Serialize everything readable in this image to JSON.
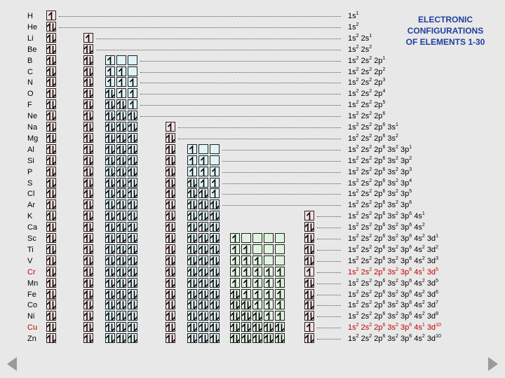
{
  "title": {
    "line1": "ELECTRONIC",
    "line2": "CONFIGURATIONS",
    "line3": "OF ELEMENTS 1-30"
  },
  "colors": {
    "s_box": "#fce1e1",
    "p_box": "#dff4f6",
    "d_box": "#e0f3df",
    "highlight": "#c00000",
    "title": "#1f3f9f",
    "background": "#e8e8e8"
  },
  "icons": {
    "electron_up": "arrow-up-icon",
    "electron_pair": "arrow-pair-icon",
    "prev": "triangle-left-icon",
    "next": "triangle-right-icon"
  },
  "elements": [
    {
      "symbol": "H",
      "highlight": false,
      "cfg": [
        [
          "1s",
          "1"
        ]
      ],
      "boxes": {
        "1s": 1
      }
    },
    {
      "symbol": "He",
      "highlight": false,
      "cfg": [
        [
          "1s",
          "2"
        ]
      ],
      "boxes": {
        "1s": 2
      }
    },
    {
      "symbol": "Li",
      "highlight": false,
      "cfg": [
        [
          "1s",
          "2"
        ],
        [
          "2s",
          "1"
        ]
      ],
      "boxes": {
        "1s": 2,
        "2s": 1
      }
    },
    {
      "symbol": "Be",
      "highlight": false,
      "cfg": [
        [
          "1s",
          "2"
        ],
        [
          "2s",
          "2"
        ]
      ],
      "boxes": {
        "1s": 2,
        "2s": 2
      }
    },
    {
      "symbol": "B",
      "highlight": false,
      "cfg": [
        [
          "1s",
          "2"
        ],
        [
          "2s",
          "2"
        ],
        [
          "2p",
          "1"
        ]
      ],
      "boxes": {
        "1s": 2,
        "2s": 2,
        "2p": [
          1,
          0,
          0
        ]
      }
    },
    {
      "symbol": "C",
      "highlight": false,
      "cfg": [
        [
          "1s",
          "2"
        ],
        [
          "2s",
          "2"
        ],
        [
          "2p",
          "2"
        ]
      ],
      "boxes": {
        "1s": 2,
        "2s": 2,
        "2p": [
          1,
          1,
          0
        ]
      }
    },
    {
      "symbol": "N",
      "highlight": false,
      "cfg": [
        [
          "1s",
          "2"
        ],
        [
          "2s",
          "2"
        ],
        [
          "2p",
          "3"
        ]
      ],
      "boxes": {
        "1s": 2,
        "2s": 2,
        "2p": [
          1,
          1,
          1
        ]
      }
    },
    {
      "symbol": "O",
      "highlight": false,
      "cfg": [
        [
          "1s",
          "2"
        ],
        [
          "2s",
          "2"
        ],
        [
          "2p",
          "4"
        ]
      ],
      "boxes": {
        "1s": 2,
        "2s": 2,
        "2p": [
          2,
          1,
          1
        ]
      }
    },
    {
      "symbol": "F",
      "highlight": false,
      "cfg": [
        [
          "1s",
          "2"
        ],
        [
          "2s",
          "2"
        ],
        [
          "2p",
          "5"
        ]
      ],
      "boxes": {
        "1s": 2,
        "2s": 2,
        "2p": [
          2,
          2,
          1
        ]
      }
    },
    {
      "symbol": "Ne",
      "highlight": false,
      "cfg": [
        [
          "1s",
          "2"
        ],
        [
          "2s",
          "2"
        ],
        [
          "2p",
          "6"
        ]
      ],
      "boxes": {
        "1s": 2,
        "2s": 2,
        "2p": [
          2,
          2,
          2
        ]
      }
    },
    {
      "symbol": "Na",
      "highlight": false,
      "cfg": [
        [
          "1s",
          "2"
        ],
        [
          "2s",
          "2"
        ],
        [
          "2p",
          "6"
        ],
        [
          "3s",
          "1"
        ]
      ],
      "boxes": {
        "1s": 2,
        "2s": 2,
        "2p": [
          2,
          2,
          2
        ],
        "3s": 1
      }
    },
    {
      "symbol": "Mg",
      "highlight": false,
      "cfg": [
        [
          "1s",
          "2"
        ],
        [
          "2s",
          "2"
        ],
        [
          "2p",
          "6"
        ],
        [
          "3s",
          "2"
        ]
      ],
      "boxes": {
        "1s": 2,
        "2s": 2,
        "2p": [
          2,
          2,
          2
        ],
        "3s": 2
      }
    },
    {
      "symbol": "Al",
      "highlight": false,
      "cfg": [
        [
          "1s",
          "2"
        ],
        [
          "2s",
          "2"
        ],
        [
          "2p",
          "6"
        ],
        [
          "3s",
          "2"
        ],
        [
          "3p",
          "1"
        ]
      ],
      "boxes": {
        "1s": 2,
        "2s": 2,
        "2p": [
          2,
          2,
          2
        ],
        "3s": 2,
        "3p": [
          1,
          0,
          0
        ]
      }
    },
    {
      "symbol": "Si",
      "highlight": false,
      "cfg": [
        [
          "1s",
          "2"
        ],
        [
          "2s",
          "2"
        ],
        [
          "2p",
          "6"
        ],
        [
          "3s",
          "2"
        ],
        [
          "3p",
          "2"
        ]
      ],
      "boxes": {
        "1s": 2,
        "2s": 2,
        "2p": [
          2,
          2,
          2
        ],
        "3s": 2,
        "3p": [
          1,
          1,
          0
        ]
      }
    },
    {
      "symbol": "P",
      "highlight": false,
      "cfg": [
        [
          "1s",
          "2"
        ],
        [
          "2s",
          "2"
        ],
        [
          "2p",
          "6"
        ],
        [
          "3s",
          "2"
        ],
        [
          "3p",
          "3"
        ]
      ],
      "boxes": {
        "1s": 2,
        "2s": 2,
        "2p": [
          2,
          2,
          2
        ],
        "3s": 2,
        "3p": [
          1,
          1,
          1
        ]
      }
    },
    {
      "symbol": "S",
      "highlight": false,
      "cfg": [
        [
          "1s",
          "2"
        ],
        [
          "2s",
          "2"
        ],
        [
          "2p",
          "6"
        ],
        [
          "3s",
          "2"
        ],
        [
          "3p",
          "4"
        ]
      ],
      "boxes": {
        "1s": 2,
        "2s": 2,
        "2p": [
          2,
          2,
          2
        ],
        "3s": 2,
        "3p": [
          2,
          1,
          1
        ]
      }
    },
    {
      "symbol": "Cl",
      "highlight": false,
      "cfg": [
        [
          "1s",
          "2"
        ],
        [
          "2s",
          "2"
        ],
        [
          "2p",
          "6"
        ],
        [
          "3s",
          "2"
        ],
        [
          "3p",
          "5"
        ]
      ],
      "boxes": {
        "1s": 2,
        "2s": 2,
        "2p": [
          2,
          2,
          2
        ],
        "3s": 2,
        "3p": [
          2,
          2,
          1
        ]
      }
    },
    {
      "symbol": "Ar",
      "highlight": false,
      "cfg": [
        [
          "1s",
          "2"
        ],
        [
          "2s",
          "2"
        ],
        [
          "2p",
          "6"
        ],
        [
          "3s",
          "2"
        ],
        [
          "3p",
          "6"
        ]
      ],
      "boxes": {
        "1s": 2,
        "2s": 2,
        "2p": [
          2,
          2,
          2
        ],
        "3s": 2,
        "3p": [
          2,
          2,
          2
        ]
      }
    },
    {
      "symbol": "K",
      "highlight": false,
      "cfg": [
        [
          "1s",
          "2"
        ],
        [
          "2s",
          "2"
        ],
        [
          "2p",
          "6"
        ],
        [
          "3s",
          "2"
        ],
        [
          "3p",
          "6"
        ],
        [
          "4s",
          "1"
        ]
      ],
      "boxes": {
        "1s": 2,
        "2s": 2,
        "2p": [
          2,
          2,
          2
        ],
        "3s": 2,
        "3p": [
          2,
          2,
          2
        ],
        "4s": 1
      }
    },
    {
      "symbol": "Ca",
      "highlight": false,
      "cfg": [
        [
          "1s",
          "2"
        ],
        [
          "2s",
          "2"
        ],
        [
          "2p",
          "6"
        ],
        [
          "3s",
          "2"
        ],
        [
          "3p",
          "6"
        ],
        [
          "4s",
          "2"
        ]
      ],
      "boxes": {
        "1s": 2,
        "2s": 2,
        "2p": [
          2,
          2,
          2
        ],
        "3s": 2,
        "3p": [
          2,
          2,
          2
        ],
        "4s": 2
      }
    },
    {
      "symbol": "Sc",
      "highlight": false,
      "cfg": [
        [
          "1s",
          "2"
        ],
        [
          "2s",
          "2"
        ],
        [
          "2p",
          "6"
        ],
        [
          "3s",
          "2"
        ],
        [
          "3p",
          "6"
        ],
        [
          "4s",
          "2"
        ],
        [
          "3d",
          "1"
        ]
      ],
      "boxes": {
        "1s": 2,
        "2s": 2,
        "2p": [
          2,
          2,
          2
        ],
        "3s": 2,
        "3p": [
          2,
          2,
          2
        ],
        "3d": [
          1,
          0,
          0,
          0,
          0
        ],
        "4s": 2
      }
    },
    {
      "symbol": "Ti",
      "highlight": false,
      "cfg": [
        [
          "1s",
          "2"
        ],
        [
          "2s",
          "2"
        ],
        [
          "2p",
          "6"
        ],
        [
          "3s",
          "2"
        ],
        [
          "3p",
          "6"
        ],
        [
          "4s",
          "2"
        ],
        [
          "3d",
          "2"
        ]
      ],
      "boxes": {
        "1s": 2,
        "2s": 2,
        "2p": [
          2,
          2,
          2
        ],
        "3s": 2,
        "3p": [
          2,
          2,
          2
        ],
        "3d": [
          1,
          1,
          0,
          0,
          0
        ],
        "4s": 2
      }
    },
    {
      "symbol": "V",
      "highlight": false,
      "cfg": [
        [
          "1s",
          "2"
        ],
        [
          "2s",
          "2"
        ],
        [
          "2p",
          "6"
        ],
        [
          "3s",
          "2"
        ],
        [
          "3p",
          "6"
        ],
        [
          "4s",
          "2"
        ],
        [
          "3d",
          "3"
        ]
      ],
      "boxes": {
        "1s": 2,
        "2s": 2,
        "2p": [
          2,
          2,
          2
        ],
        "3s": 2,
        "3p": [
          2,
          2,
          2
        ],
        "3d": [
          1,
          1,
          1,
          0,
          0
        ],
        "4s": 2
      }
    },
    {
      "symbol": "Cr",
      "highlight": true,
      "cfg": [
        [
          "1s",
          "2"
        ],
        [
          "2s",
          "2"
        ],
        [
          "2p",
          "6"
        ],
        [
          "3s",
          "2"
        ],
        [
          "3p",
          "6"
        ],
        [
          "4s",
          "1"
        ],
        [
          "3d",
          "5"
        ]
      ],
      "boxes": {
        "1s": 2,
        "2s": 2,
        "2p": [
          2,
          2,
          2
        ],
        "3s": 2,
        "3p": [
          2,
          2,
          2
        ],
        "3d": [
          1,
          1,
          1,
          1,
          1
        ],
        "4s": 1
      }
    },
    {
      "symbol": "Mn",
      "highlight": false,
      "cfg": [
        [
          "1s",
          "2"
        ],
        [
          "2s",
          "2"
        ],
        [
          "2p",
          "6"
        ],
        [
          "3s",
          "2"
        ],
        [
          "3p",
          "6"
        ],
        [
          "4s",
          "2"
        ],
        [
          "3d",
          "5"
        ]
      ],
      "boxes": {
        "1s": 2,
        "2s": 2,
        "2p": [
          2,
          2,
          2
        ],
        "3s": 2,
        "3p": [
          2,
          2,
          2
        ],
        "3d": [
          1,
          1,
          1,
          1,
          1
        ],
        "4s": 2
      }
    },
    {
      "symbol": "Fe",
      "highlight": false,
      "cfg": [
        [
          "1s",
          "2"
        ],
        [
          "2s",
          "2"
        ],
        [
          "2p",
          "6"
        ],
        [
          "3s",
          "2"
        ],
        [
          "3p",
          "6"
        ],
        [
          "4s",
          "2"
        ],
        [
          "3d",
          "6"
        ]
      ],
      "boxes": {
        "1s": 2,
        "2s": 2,
        "2p": [
          2,
          2,
          2
        ],
        "3s": 2,
        "3p": [
          2,
          2,
          2
        ],
        "3d": [
          2,
          1,
          1,
          1,
          1
        ],
        "4s": 2
      }
    },
    {
      "symbol": "Co",
      "highlight": false,
      "cfg": [
        [
          "1s",
          "2"
        ],
        [
          "2s",
          "2"
        ],
        [
          "2p",
          "6"
        ],
        [
          "3s",
          "2"
        ],
        [
          "3p",
          "6"
        ],
        [
          "4s",
          "2"
        ],
        [
          "3d",
          "7"
        ]
      ],
      "boxes": {
        "1s": 2,
        "2s": 2,
        "2p": [
          2,
          2,
          2
        ],
        "3s": 2,
        "3p": [
          2,
          2,
          2
        ],
        "3d": [
          2,
          2,
          1,
          1,
          1
        ],
        "4s": 2
      }
    },
    {
      "symbol": "Ni",
      "highlight": false,
      "cfg": [
        [
          "1s",
          "2"
        ],
        [
          "2s",
          "2"
        ],
        [
          "2p",
          "6"
        ],
        [
          "3s",
          "2"
        ],
        [
          "3p",
          "6"
        ],
        [
          "4s",
          "2"
        ],
        [
          "3d",
          "8"
        ]
      ],
      "boxes": {
        "1s": 2,
        "2s": 2,
        "2p": [
          2,
          2,
          2
        ],
        "3s": 2,
        "3p": [
          2,
          2,
          2
        ],
        "3d": [
          2,
          2,
          2,
          1,
          1
        ],
        "4s": 2
      }
    },
    {
      "symbol": "Cu",
      "highlight": true,
      "cfg": [
        [
          "1s",
          "2"
        ],
        [
          "2s",
          "2"
        ],
        [
          "2p",
          "6"
        ],
        [
          "3s",
          "2"
        ],
        [
          "3p",
          "6"
        ],
        [
          "4s",
          "1"
        ],
        [
          "3d",
          "10"
        ]
      ],
      "boxes": {
        "1s": 2,
        "2s": 2,
        "2p": [
          2,
          2,
          2
        ],
        "3s": 2,
        "3p": [
          2,
          2,
          2
        ],
        "3d": [
          2,
          2,
          2,
          2,
          2
        ],
        "4s": 1
      }
    },
    {
      "symbol": "Zn",
      "highlight": false,
      "cfg": [
        [
          "1s",
          "2"
        ],
        [
          "2s",
          "2"
        ],
        [
          "2p",
          "6"
        ],
        [
          "3s",
          "2"
        ],
        [
          "3p",
          "6"
        ],
        [
          "4s",
          "2"
        ],
        [
          "3d",
          "10"
        ]
      ],
      "boxes": {
        "1s": 2,
        "2s": 2,
        "2p": [
          2,
          2,
          2
        ],
        "3s": 2,
        "3p": [
          2,
          2,
          2
        ],
        "3d": [
          2,
          2,
          2,
          2,
          2
        ],
        "4s": 2
      }
    }
  ]
}
